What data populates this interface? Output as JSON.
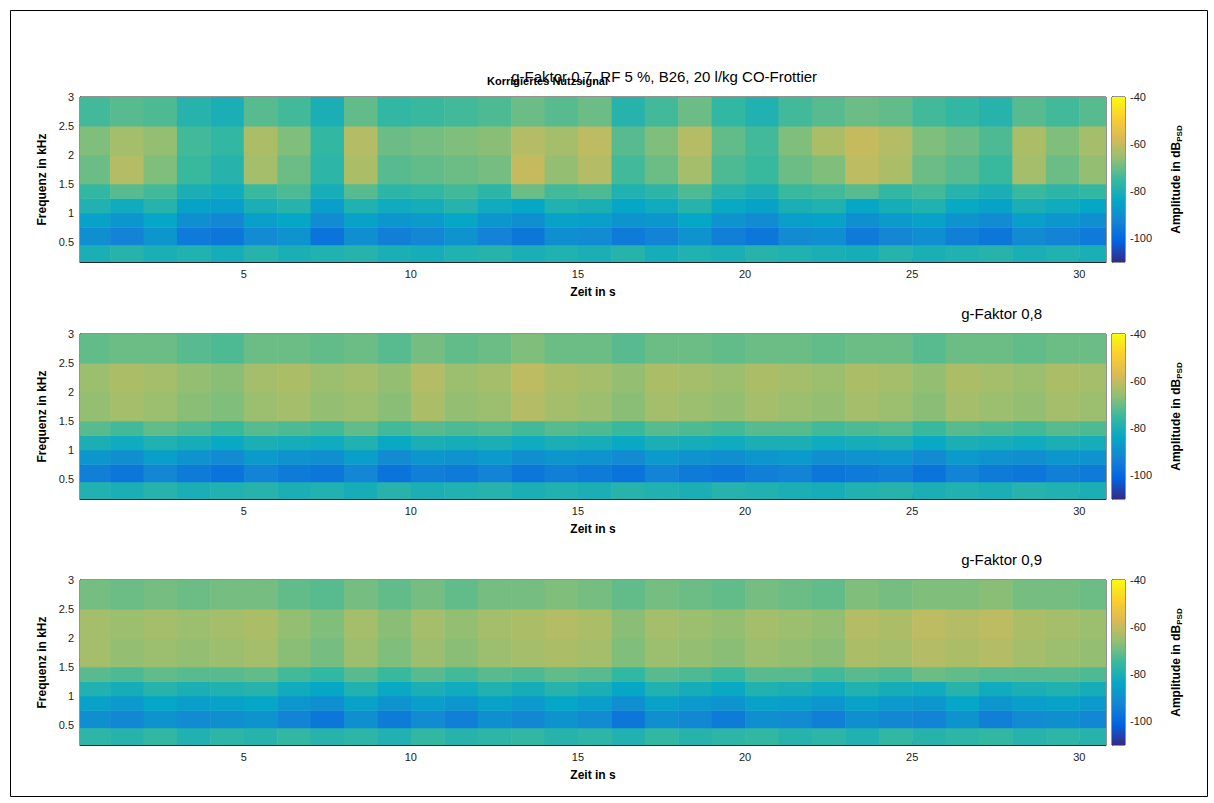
{
  "chart_data": [
    {
      "type": "heatmap",
      "title": "g-Faktor 0,7, RF 5 %, B26, 20 l/kg CO-Frottier",
      "subtitle": "Korrigiertes Nutzsignal",
      "x_label": "Zeit in s",
      "y_label": "Frequenz in kHz",
      "colorbar_label": "Amplitude in dB",
      "colorbar_label_subscript": "PSD",
      "xlim": [
        0.1,
        30.8
      ],
      "ylim": [
        0.15,
        3
      ],
      "xticks": [
        5,
        10,
        15,
        20,
        25,
        30
      ],
      "yticks": [
        0.5,
        1,
        1.5,
        2,
        2.5,
        3
      ],
      "clim": [
        -110,
        -40
      ],
      "cticks": [
        -100,
        -80,
        -60,
        -40
      ],
      "x_bins": [
        0.1,
        1,
        2,
        3,
        4,
        5,
        6,
        7,
        8,
        9,
        10,
        11,
        12,
        13,
        14,
        15,
        16,
        17,
        18,
        19,
        20,
        21,
        22,
        23,
        24,
        25,
        26,
        27,
        28,
        29,
        30,
        30.8
      ],
      "y_bins": [
        0.15,
        0.45,
        0.75,
        1.0,
        1.25,
        1.5,
        2.0,
        2.5,
        3.0
      ],
      "cells": [
        [
          -80,
          -78,
          -80,
          -79,
          -81,
          -78,
          -80,
          -79,
          -78,
          -80,
          -81,
          -79,
          -78,
          -80,
          -79,
          -80,
          -78,
          -81,
          -79,
          -80,
          -78,
          -79,
          -80,
          -81,
          -78,
          -80,
          -79,
          -78,
          -80,
          -79,
          -80
        ],
        [
          -90,
          -93,
          -88,
          -95,
          -96,
          -91,
          -89,
          -97,
          -90,
          -94,
          -92,
          -89,
          -93,
          -96,
          -90,
          -91,
          -95,
          -93,
          -89,
          -94,
          -96,
          -91,
          -90,
          -95,
          -92,
          -90,
          -94,
          -96,
          -91,
          -93,
          -95
        ],
        [
          -85,
          -88,
          -84,
          -90,
          -92,
          -86,
          -84,
          -91,
          -85,
          -88,
          -87,
          -84,
          -88,
          -90,
          -85,
          -86,
          -89,
          -88,
          -84,
          -89,
          -91,
          -86,
          -85,
          -90,
          -87,
          -85,
          -89,
          -91,
          -86,
          -88,
          -90
        ],
        [
          -79,
          -82,
          -78,
          -85,
          -86,
          -80,
          -78,
          -86,
          -79,
          -82,
          -81,
          -78,
          -82,
          -84,
          -79,
          -80,
          -84,
          -82,
          -78,
          -83,
          -85,
          -80,
          -79,
          -84,
          -81,
          -79,
          -83,
          -85,
          -80,
          -82,
          -84
        ],
        [
          -76,
          -72,
          -74,
          -80,
          -82,
          -75,
          -73,
          -81,
          -72,
          -77,
          -76,
          -74,
          -77,
          -70,
          -74,
          -73,
          -79,
          -77,
          -73,
          -78,
          -80,
          -75,
          -74,
          -72,
          -76,
          -74,
          -78,
          -80,
          -75,
          -77,
          -76
        ],
        [
          -70,
          -62,
          -68,
          -75,
          -78,
          -64,
          -70,
          -77,
          -63,
          -72,
          -71,
          -70,
          -69,
          -60,
          -66,
          -62,
          -74,
          -70,
          -64,
          -73,
          -75,
          -70,
          -68,
          -61,
          -63,
          -70,
          -72,
          -75,
          -64,
          -70,
          -66
        ],
        [
          -68,
          -64,
          -66,
          -74,
          -76,
          -63,
          -68,
          -76,
          -62,
          -70,
          -69,
          -68,
          -67,
          -62,
          -64,
          -61,
          -72,
          -68,
          -62,
          -71,
          -74,
          -68,
          -63,
          -60,
          -62,
          -68,
          -70,
          -73,
          -63,
          -68,
          -64
        ],
        [
          -74,
          -72,
          -73,
          -78,
          -80,
          -72,
          -74,
          -80,
          -71,
          -76,
          -75,
          -74,
          -73,
          -70,
          -72,
          -70,
          -78,
          -74,
          -70,
          -76,
          -79,
          -74,
          -72,
          -70,
          -71,
          -74,
          -76,
          -78,
          -72,
          -74,
          -72
        ]
      ]
    },
    {
      "type": "heatmap",
      "title": "g-Faktor 0,8",
      "x_label": "Zeit in s",
      "y_label": "Frequenz in kHz",
      "colorbar_label": "Amplitude in dB",
      "colorbar_label_subscript": "PSD",
      "xlim": [
        0.1,
        30.8
      ],
      "ylim": [
        0.15,
        3
      ],
      "xticks": [
        5,
        10,
        15,
        20,
        25,
        30
      ],
      "yticks": [
        0.5,
        1,
        1.5,
        2,
        2.5,
        3
      ],
      "clim": [
        -110,
        -40
      ],
      "cticks": [
        -100,
        -80,
        -60,
        -40
      ],
      "x_bins": [
        0.1,
        1,
        2,
        3,
        4,
        5,
        6,
        7,
        8,
        9,
        10,
        11,
        12,
        13,
        14,
        15,
        16,
        17,
        18,
        19,
        20,
        21,
        22,
        23,
        24,
        25,
        26,
        27,
        28,
        29,
        30,
        30.8
      ],
      "y_bins": [
        0.15,
        0.45,
        0.75,
        1.0,
        1.25,
        1.5,
        2.0,
        2.5,
        3.0
      ],
      "cells": [
        [
          -79,
          -80,
          -78,
          -80,
          -79,
          -78,
          -80,
          -79,
          -81,
          -78,
          -80,
          -79,
          -78,
          -80,
          -79,
          -80,
          -78,
          -79,
          -80,
          -78,
          -79,
          -80,
          -81,
          -79,
          -78,
          -80,
          -79,
          -80,
          -78,
          -79,
          -80
        ],
        [
          -94,
          -96,
          -92,
          -95,
          -97,
          -93,
          -95,
          -96,
          -92,
          -97,
          -94,
          -95,
          -93,
          -96,
          -94,
          -95,
          -97,
          -93,
          -95,
          -96,
          -94,
          -93,
          -96,
          -95,
          -94,
          -97,
          -93,
          -95,
          -96,
          -94,
          -95
        ],
        [
          -88,
          -90,
          -86,
          -89,
          -91,
          -87,
          -89,
          -90,
          -86,
          -91,
          -88,
          -89,
          -87,
          -90,
          -88,
          -89,
          -91,
          -87,
          -89,
          -90,
          -88,
          -87,
          -90,
          -89,
          -88,
          -91,
          -87,
          -89,
          -90,
          -88,
          -89
        ],
        [
          -80,
          -82,
          -79,
          -81,
          -83,
          -80,
          -81,
          -82,
          -79,
          -83,
          -80,
          -81,
          -80,
          -82,
          -80,
          -81,
          -83,
          -80,
          -81,
          -82,
          -80,
          -80,
          -82,
          -81,
          -80,
          -83,
          -80,
          -81,
          -82,
          -80,
          -81
        ],
        [
          -72,
          -74,
          -71,
          -73,
          -75,
          -72,
          -73,
          -74,
          -71,
          -74,
          -72,
          -73,
          -72,
          -74,
          -72,
          -73,
          -75,
          -72,
          -73,
          -74,
          -72,
          -72,
          -74,
          -73,
          -72,
          -75,
          -72,
          -73,
          -74,
          -72,
          -73
        ],
        [
          -66,
          -64,
          -65,
          -67,
          -68,
          -65,
          -64,
          -66,
          -65,
          -67,
          -63,
          -66,
          -65,
          -62,
          -64,
          -65,
          -67,
          -64,
          -65,
          -66,
          -64,
          -65,
          -66,
          -64,
          -65,
          -67,
          -64,
          -65,
          -66,
          -64,
          -65
        ],
        [
          -65,
          -63,
          -64,
          -66,
          -67,
          -64,
          -63,
          -65,
          -64,
          -66,
          -62,
          -65,
          -64,
          -61,
          -63,
          -64,
          -66,
          -63,
          -64,
          -65,
          -63,
          -64,
          -65,
          -63,
          -64,
          -66,
          -63,
          -64,
          -65,
          -63,
          -64
        ],
        [
          -71,
          -70,
          -70,
          -72,
          -73,
          -70,
          -70,
          -71,
          -70,
          -72,
          -69,
          -71,
          -70,
          -68,
          -70,
          -70,
          -72,
          -70,
          -70,
          -71,
          -70,
          -70,
          -71,
          -70,
          -70,
          -72,
          -70,
          -70,
          -71,
          -70,
          -70
        ]
      ]
    },
    {
      "type": "heatmap",
      "title": "g-Faktor 0,9",
      "x_label": "Zeit in s",
      "y_label": "Frequenz in kHz",
      "colorbar_label": "Amplitude in dB",
      "colorbar_label_subscript": "PSD",
      "xlim": [
        0.1,
        30.8
      ],
      "ylim": [
        0.15,
        3
      ],
      "xticks": [
        5,
        10,
        15,
        20,
        25,
        30
      ],
      "yticks": [
        0.5,
        1,
        1.5,
        2,
        2.5,
        3
      ],
      "clim": [
        -110,
        -40
      ],
      "cticks": [
        -100,
        -80,
        -60,
        -40
      ],
      "x_bins": [
        0.1,
        1,
        2,
        3,
        4,
        5,
        6,
        7,
        8,
        9,
        10,
        11,
        12,
        13,
        14,
        15,
        16,
        17,
        18,
        19,
        20,
        21,
        22,
        23,
        24,
        25,
        26,
        27,
        28,
        29,
        30,
        30.8
      ],
      "y_bins": [
        0.15,
        0.45,
        0.75,
        1.0,
        1.25,
        1.5,
        2.0,
        2.5,
        3.0
      ],
      "cells": [
        [
          -77,
          -78,
          -76,
          -79,
          -77,
          -78,
          -76,
          -78,
          -77,
          -79,
          -76,
          -78,
          -77,
          -76,
          -78,
          -77,
          -79,
          -76,
          -78,
          -77,
          -76,
          -78,
          -77,
          -79,
          -76,
          -78,
          -77,
          -76,
          -78,
          -77,
          -78
        ],
        [
          -90,
          -92,
          -89,
          -91,
          -90,
          -89,
          -93,
          -96,
          -90,
          -95,
          -91,
          -94,
          -90,
          -92,
          -89,
          -91,
          -96,
          -90,
          -92,
          -95,
          -90,
          -91,
          -94,
          -90,
          -92,
          -93,
          -89,
          -94,
          -91,
          -90,
          -92
        ],
        [
          -85,
          -87,
          -84,
          -86,
          -85,
          -84,
          -88,
          -90,
          -85,
          -89,
          -86,
          -88,
          -85,
          -87,
          -84,
          -86,
          -90,
          -85,
          -87,
          -89,
          -85,
          -86,
          -88,
          -85,
          -87,
          -88,
          -84,
          -88,
          -86,
          -85,
          -87
        ],
        [
          -79,
          -81,
          -78,
          -80,
          -79,
          -78,
          -82,
          -84,
          -79,
          -83,
          -80,
          -82,
          -79,
          -81,
          -78,
          -80,
          -84,
          -79,
          -81,
          -83,
          -79,
          -80,
          -82,
          -79,
          -81,
          -82,
          -78,
          -82,
          -80,
          -79,
          -81
        ],
        [
          -72,
          -73,
          -71,
          -72,
          -72,
          -71,
          -74,
          -76,
          -72,
          -75,
          -72,
          -74,
          -72,
          -73,
          -71,
          -72,
          -76,
          -72,
          -73,
          -75,
          -72,
          -72,
          -74,
          -72,
          -73,
          -70,
          -71,
          -72,
          -72,
          -72,
          -73
        ],
        [
          -64,
          -66,
          -65,
          -66,
          -65,
          -64,
          -67,
          -69,
          -65,
          -68,
          -65,
          -67,
          -65,
          -64,
          -63,
          -64,
          -68,
          -65,
          -66,
          -67,
          -65,
          -66,
          -67,
          -63,
          -64,
          -62,
          -63,
          -62,
          -64,
          -65,
          -66
        ],
        [
          -64,
          -65,
          -64,
          -65,
          -64,
          -63,
          -66,
          -68,
          -64,
          -67,
          -64,
          -66,
          -64,
          -63,
          -62,
          -63,
          -67,
          -64,
          -65,
          -66,
          -64,
          -65,
          -66,
          -62,
          -63,
          -61,
          -62,
          -61,
          -63,
          -64,
          -65
        ],
        [
          -69,
          -70,
          -69,
          -70,
          -69,
          -69,
          -71,
          -72,
          -69,
          -71,
          -69,
          -71,
          -69,
          -69,
          -68,
          -69,
          -71,
          -69,
          -70,
          -71,
          -69,
          -70,
          -71,
          -68,
          -69,
          -68,
          -68,
          -67,
          -69,
          -69,
          -70
        ]
      ]
    }
  ]
}
